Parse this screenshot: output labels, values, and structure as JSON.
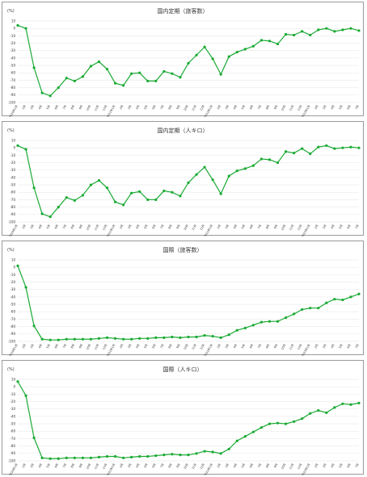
{
  "colors": {
    "series": "#1aaa33",
    "grid": "#e4e4e4",
    "border": "#9a9a9a",
    "text": "#333333"
  },
  "chart_data": [
    {
      "type": "line",
      "title": "国内定期（旅客数）",
      "ylabel": "(%)",
      "ylim": [
        -100,
        10
      ],
      "yticks": [
        10,
        0,
        -10,
        -20,
        -30,
        -40,
        -50,
        -60,
        -70,
        -80,
        -90,
        -100
      ],
      "x": [
        "2020年1月",
        "2月",
        "3月",
        "4月",
        "5月",
        "6月",
        "7月",
        "8月",
        "9月",
        "10月",
        "11月",
        "12月",
        "2021年1月",
        "2月",
        "3月",
        "4月",
        "5月",
        "6月",
        "7月",
        "8月",
        "9月",
        "10月",
        "11月",
        "12月",
        "2022年1月",
        "2月",
        "3月",
        "4月",
        "5月",
        "6月",
        "7月",
        "8月",
        "9月",
        "10月",
        "11月",
        "12月",
        "2023年1月",
        "2月",
        "3月",
        "4月",
        "5月",
        "6月",
        "7月"
      ],
      "series": [
        {
          "values": [
            4,
            0,
            -53,
            -87,
            -91,
            -80,
            -67,
            -71,
            -65,
            -51,
            -45,
            -55,
            -74,
            -77,
            -61,
            -60,
            -71,
            -71,
            -58,
            -61,
            -66,
            -47,
            -36,
            -25,
            -41,
            -62,
            -38,
            -32,
            -28,
            -24,
            -16,
            -17,
            -21,
            -8,
            -9,
            -4,
            -9,
            -2,
            0,
            -4,
            -2,
            0,
            -3
          ]
        }
      ]
    },
    {
      "type": "line",
      "title": "国内定期（人キロ）",
      "ylabel": "(%)",
      "ylim": [
        -100,
        10
      ],
      "yticks": [
        10,
        0,
        -10,
        -20,
        -30,
        -40,
        -50,
        -60,
        -70,
        -80,
        -90,
        -100
      ],
      "x": [
        "2020年1月",
        "2月",
        "3月",
        "4月",
        "5月",
        "6月",
        "7月",
        "8月",
        "9月",
        "10月",
        "11月",
        "12月",
        "2021年1月",
        "2月",
        "3月",
        "4月",
        "5月",
        "6月",
        "7月",
        "8月",
        "9月",
        "10月",
        "11月",
        "12月",
        "2022年1月",
        "2月",
        "3月",
        "4月",
        "5月",
        "6月",
        "7月",
        "8月",
        "9月",
        "10月",
        "11月",
        "12月",
        "2023年1月",
        "2月",
        "3月",
        "4月",
        "5月",
        "6月",
        "7月"
      ],
      "series": [
        {
          "values": [
            3,
            -2,
            -54,
            -89,
            -93,
            -80,
            -67,
            -71,
            -64,
            -50,
            -44,
            -54,
            -73,
            -77,
            -61,
            -59,
            -70,
            -70,
            -58,
            -60,
            -65,
            -47,
            -36,
            -26,
            -43,
            -62,
            -38,
            -31,
            -28,
            -24,
            -15,
            -16,
            -20,
            -5,
            -7,
            -1,
            -8,
            1,
            3,
            -1,
            0,
            1,
            0
          ]
        }
      ]
    },
    {
      "type": "line",
      "title": "国際（旅客数）",
      "ylabel": "(%)",
      "ylim": [
        -100,
        10
      ],
      "yticks": [
        10,
        0,
        -10,
        -20,
        -30,
        -40,
        -50,
        -60,
        -70,
        -80,
        -90,
        -100
      ],
      "x": [
        "2020年1月",
        "2月",
        "3月",
        "4月",
        "5月",
        "6月",
        "7月",
        "8月",
        "9月",
        "10月",
        "11月",
        "12月",
        "2021年1月",
        "2月",
        "3月",
        "4月",
        "5月",
        "6月",
        "7月",
        "8月",
        "9月",
        "10月",
        "11月",
        "12月",
        "2022年1月",
        "2月",
        "3月",
        "4月",
        "5月",
        "6月",
        "7月",
        "8月",
        "9月",
        "10月",
        "11月",
        "12月",
        "2023年1月",
        "2月",
        "3月",
        "4月",
        "5月",
        "6月",
        "7月"
      ],
      "series": [
        {
          "values": [
            2,
            -27,
            -79,
            -97,
            -98,
            -98,
            -97,
            -97,
            -97,
            -97,
            -96,
            -95,
            -96,
            -97,
            -97,
            -96,
            -96,
            -95,
            -95,
            -94,
            -95,
            -94,
            -94,
            -92,
            -93,
            -95,
            -91,
            -85,
            -82,
            -78,
            -74,
            -73,
            -73,
            -68,
            -63,
            -57,
            -55,
            -55,
            -48,
            -43,
            -44,
            -40,
            -36
          ]
        }
      ]
    },
    {
      "type": "line",
      "title": "国際（人キロ）",
      "ylabel": "(%)",
      "ylim": [
        -100,
        10
      ],
      "yticks": [
        10,
        0,
        -10,
        -20,
        -30,
        -40,
        -50,
        -60,
        -70,
        -80,
        -90,
        -100
      ],
      "x": [
        "2020年1月",
        "2月",
        "3月",
        "4月",
        "5月",
        "6月",
        "7月",
        "8月",
        "9月",
        "10月",
        "11月",
        "12月",
        "2021年1月",
        "2月",
        "3月",
        "4月",
        "5月",
        "6月",
        "7月",
        "8月",
        "9月",
        "10月",
        "11月",
        "12月",
        "2022年1月",
        "2月",
        "3月",
        "4月",
        "5月",
        "6月",
        "7月",
        "8月",
        "9月",
        "10月",
        "11月",
        "12月",
        "2023年1月",
        "2月",
        "3月",
        "4月",
        "5月",
        "6月",
        "7月"
      ],
      "series": [
        {
          "values": [
            7,
            -12,
            -69,
            -96,
            -97,
            -97,
            -96,
            -96,
            -96,
            -96,
            -95,
            -94,
            -94,
            -96,
            -95,
            -94,
            -94,
            -93,
            -92,
            -91,
            -92,
            -92,
            -90,
            -87,
            -88,
            -90,
            -84,
            -73,
            -67,
            -61,
            -55,
            -50,
            -49,
            -50,
            -47,
            -43,
            -36,
            -32,
            -35,
            -28,
            -23,
            -24,
            -22
          ]
        }
      ]
    }
  ]
}
